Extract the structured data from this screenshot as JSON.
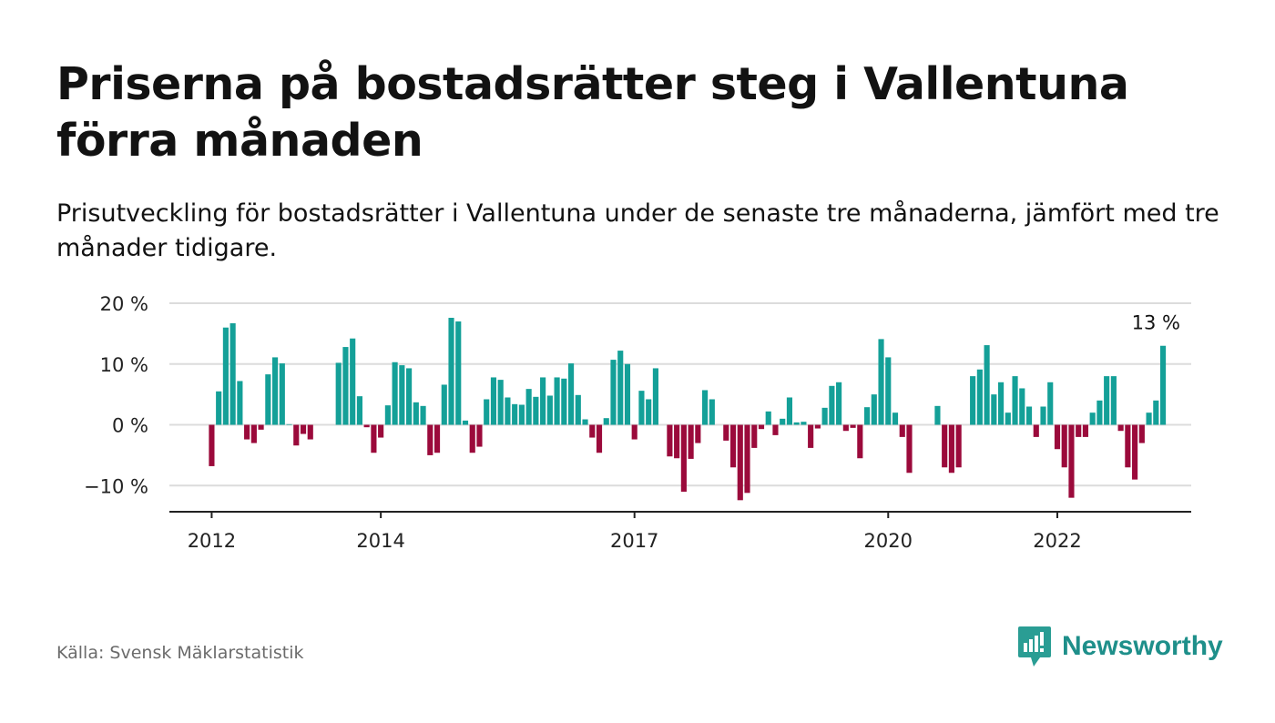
{
  "title": "Priserna på bostadsrätter steg i Vallentuna förra månaden",
  "subtitle": "Prisutveckling för bostadsrätter i Vallentuna under de senaste tre månaderna, jämfört med tre månader tidigare.",
  "source": "Källa: Svensk Mäklarstatistik",
  "brand": {
    "name": "Newsworthy",
    "icon": "newsworthy-logo-icon",
    "color": "#2a9d94"
  },
  "colors": {
    "positive": "#14a098",
    "negative": "#9b0a3b",
    "grid": "#dcdcdc",
    "axis": "#222222"
  },
  "chart_data": {
    "type": "bar",
    "title": "Priserna på bostadsrätter steg i Vallentuna förra månaden",
    "subtitle": "Prisutveckling för bostadsrätter i Vallentuna under de senaste tre månaderna, jämfört med tre månader tidigare.",
    "xlabel": "",
    "ylabel": "",
    "unit": "%",
    "ylim": [
      -14,
      20
    ],
    "yticks": [
      20,
      10,
      0,
      -10
    ],
    "ytick_labels": [
      "20 %",
      "10 %",
      "0 %",
      "−10 %"
    ],
    "xticks": [
      "2012-01",
      "2014-01",
      "2017-01",
      "2020-01",
      "2022-01"
    ],
    "xtick_labels": [
      "2012",
      "2014",
      "2017",
      "2020",
      "2022"
    ],
    "x_range": [
      "2011-07",
      "2023-08"
    ],
    "grid": "horizontal",
    "legend": "none",
    "annotation": {
      "x": "2023-03",
      "value": 13,
      "label": "13 %"
    },
    "start": "2012-01",
    "values": [
      -6.8,
      5.5,
      16,
      16.7,
      7.2,
      -2.4,
      -3,
      -0.8,
      8.3,
      11.1,
      10.1,
      0.1,
      -3.4,
      -1.5,
      -2.4,
      0,
      0,
      0,
      10.2,
      12.8,
      14.2,
      4.7,
      -0.4,
      -4.6,
      -2.1,
      3.2,
      10.3,
      9.8,
      9.3,
      3.7,
      3.1,
      -5,
      -4.6,
      6.6,
      17.6,
      17,
      0.7,
      -4.6,
      -3.6,
      4.2,
      7.8,
      7.4,
      4.5,
      3.4,
      3.3,
      5.9,
      4.6,
      7.8,
      4.8,
      7.8,
      7.6,
      10.1,
      4.9,
      0.9,
      -2.1,
      -4.6,
      1.1,
      10.7,
      12.2,
      10,
      -2.4,
      5.6,
      4.2,
      9.3,
      0,
      -5.2,
      -5.5,
      -11,
      -5.6,
      -3,
      5.7,
      4.2,
      0,
      -2.6,
      -7,
      -12.4,
      -11.2,
      -3.8,
      -0.7,
      2.2,
      -1.7,
      1,
      4.5,
      0.4,
      0.5,
      -3.8,
      -0.6,
      2.8,
      6.4,
      7,
      -1,
      -0.5,
      -5.5,
      2.9,
      5,
      14.1,
      11.1,
      2,
      -2,
      -7.9,
      0,
      0,
      0,
      3.1,
      -7,
      -7.9,
      -7,
      0,
      8,
      9.1,
      13.1,
      5,
      7,
      2,
      8,
      6,
      3,
      -2,
      3,
      7,
      -4,
      -7,
      -12,
      -2,
      -2,
      2,
      4,
      8,
      8,
      -1,
      -7,
      -9,
      -3,
      2,
      4,
      13
    ]
  }
}
